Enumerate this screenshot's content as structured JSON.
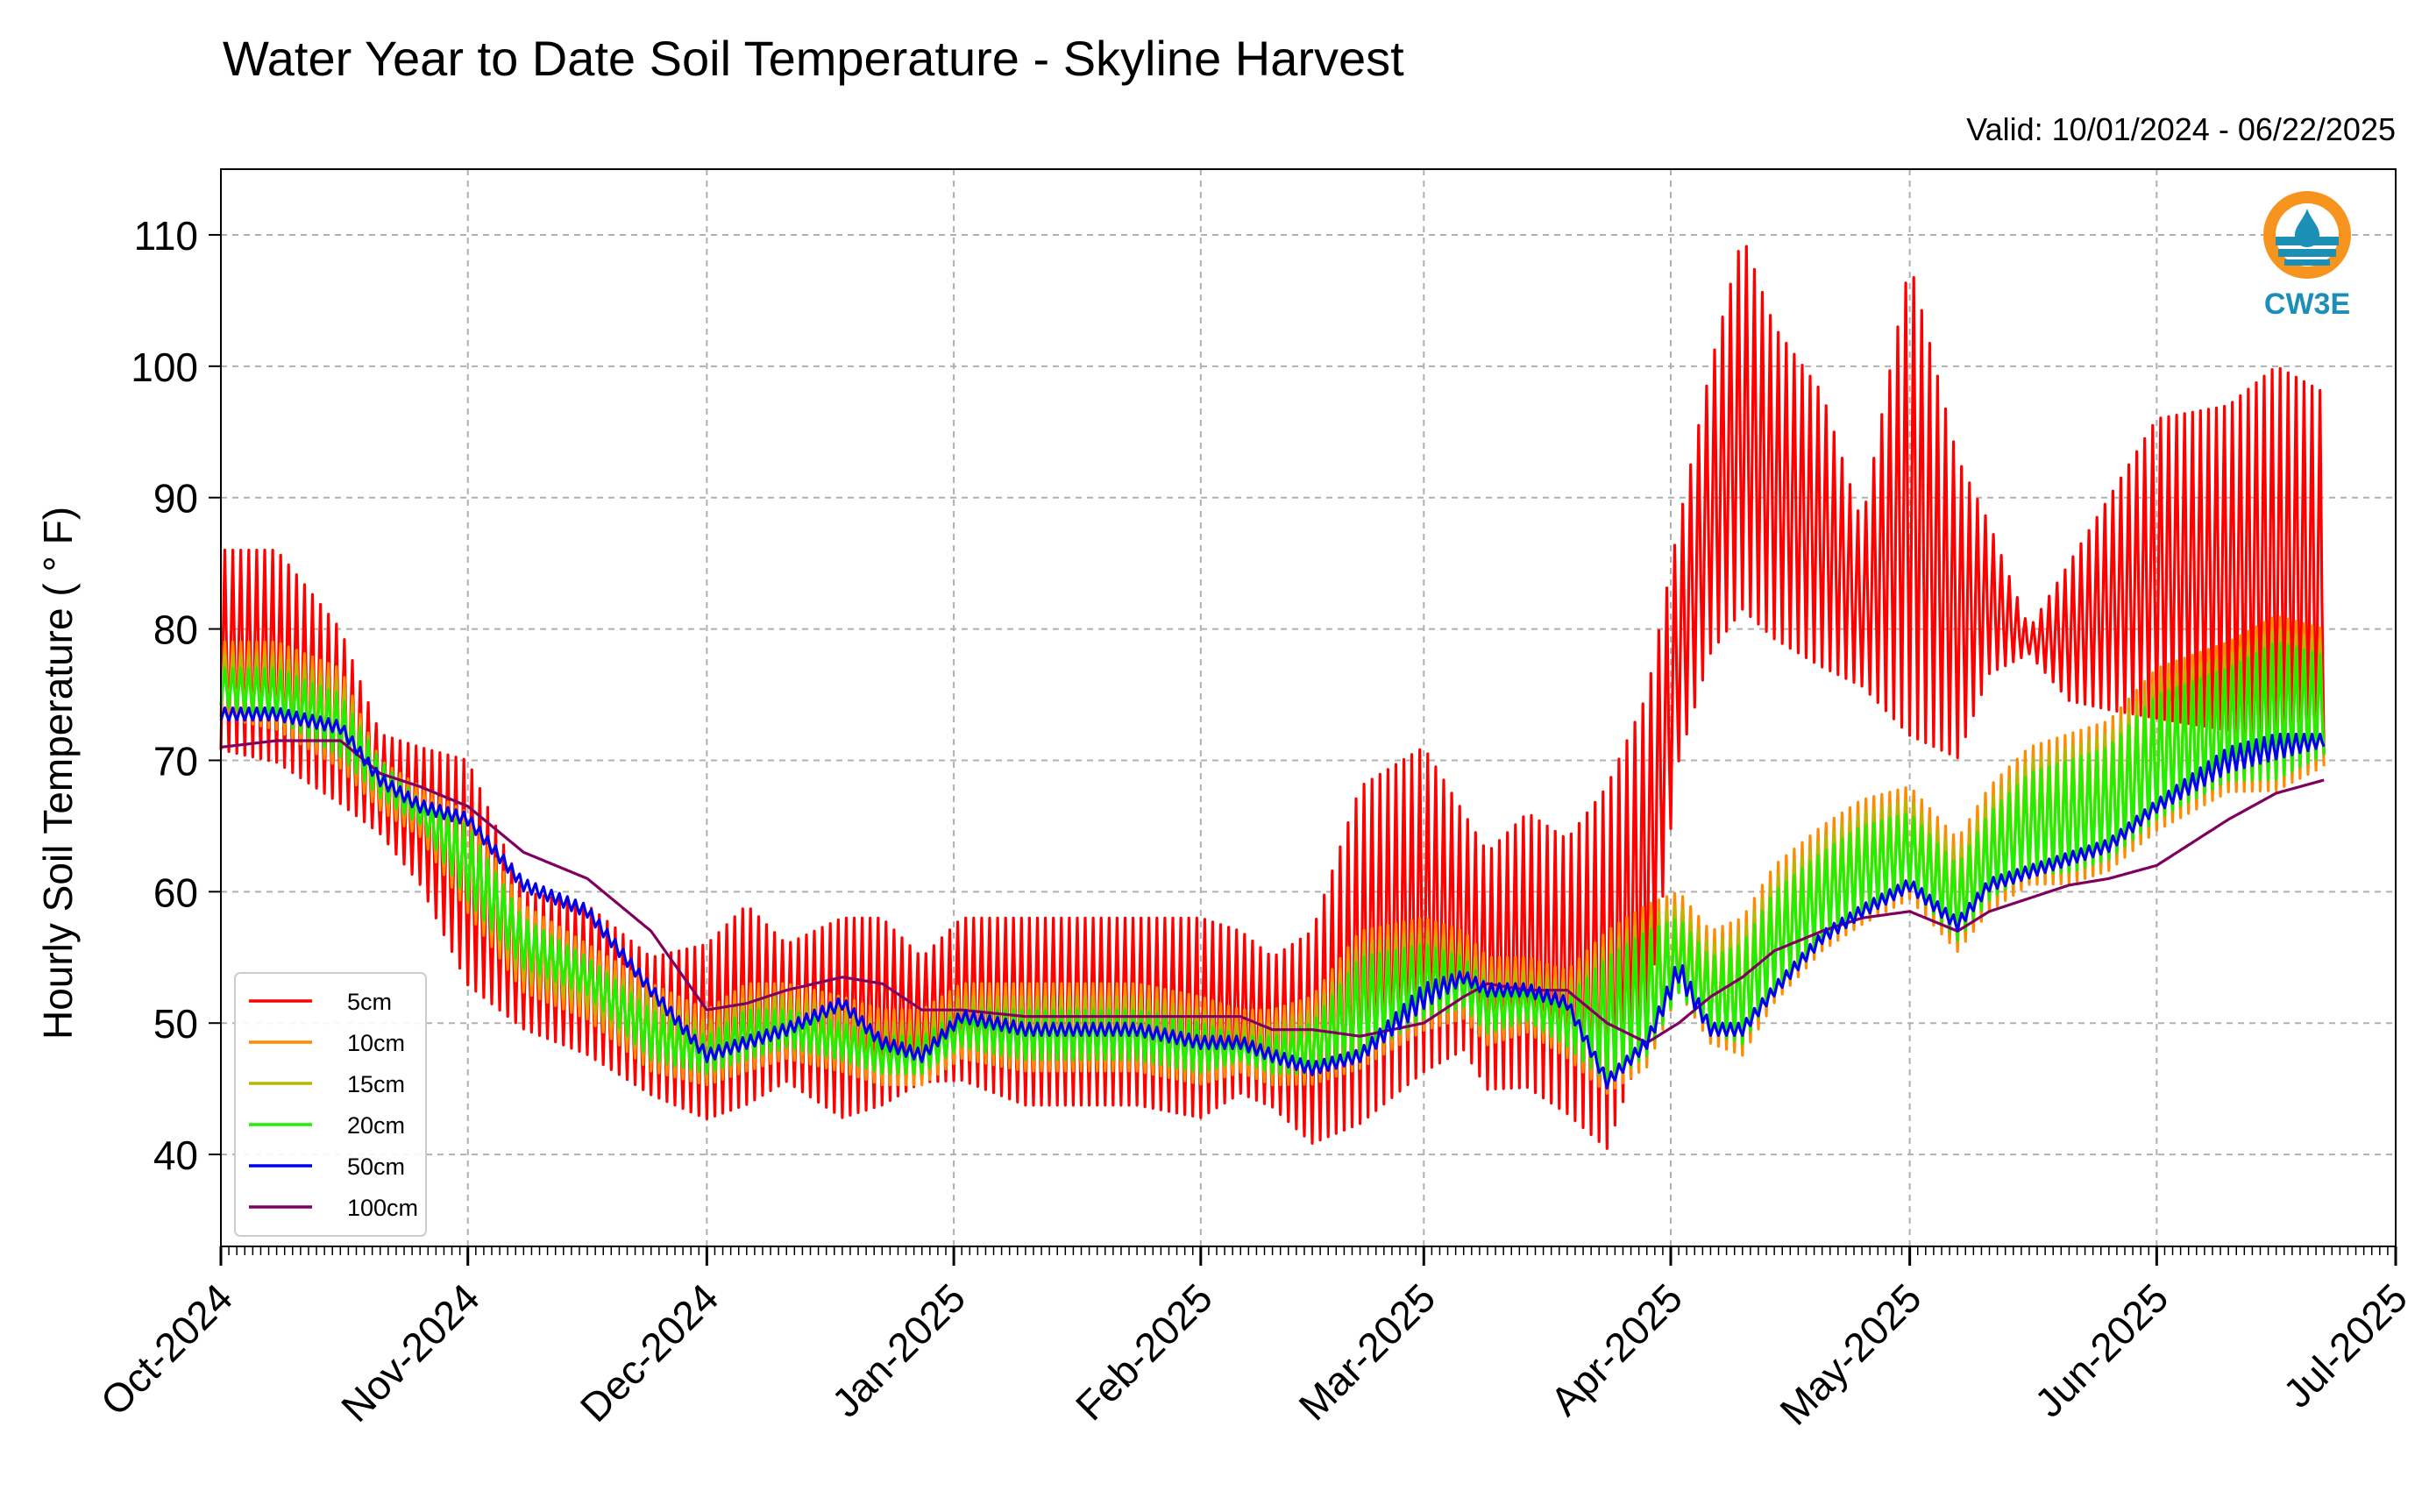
{
  "chart_data": {
    "type": "line",
    "title": "Water Year to Date Soil Temperature - Skyline Harvest",
    "subtitle": "Valid: 10/01/2024 - 06/22/2025",
    "ylabel": "Hourly Soil Temperature ( ° F)",
    "xlabel": "",
    "xlim": [
      "2024-10-01",
      "2025-07-01"
    ],
    "ylim": [
      33,
      115
    ],
    "yticks": [
      40,
      50,
      60,
      70,
      80,
      90,
      100,
      110
    ],
    "xticks": [
      {
        "date": "2024-10-01",
        "label": "Oct-2024"
      },
      {
        "date": "2024-11-01",
        "label": "Nov-2024"
      },
      {
        "date": "2024-12-01",
        "label": "Dec-2024"
      },
      {
        "date": "2025-01-01",
        "label": "Jan-2025"
      },
      {
        "date": "2025-02-01",
        "label": "Feb-2025"
      },
      {
        "date": "2025-03-01",
        "label": "Mar-2025"
      },
      {
        "date": "2025-04-01",
        "label": "Apr-2025"
      },
      {
        "date": "2025-05-01",
        "label": "May-2025"
      },
      {
        "date": "2025-06-01",
        "label": "Jun-2025"
      },
      {
        "date": "2025-07-01",
        "label": "Jul-2025"
      }
    ],
    "grid": true,
    "legend_position": "lower-left",
    "logo_text": "CW3E",
    "series": [
      {
        "name": "5cm",
        "color": "#ff0000",
        "x": [
          "2024-10-01",
          "2024-10-08",
          "2024-10-16",
          "2024-10-21",
          "2024-10-26",
          "2024-11-01",
          "2024-11-08",
          "2024-11-16",
          "2024-11-24",
          "2024-12-01",
          "2024-12-06",
          "2024-12-11",
          "2024-12-18",
          "2024-12-23",
          "2024-12-28",
          "2025-01-02",
          "2025-01-10",
          "2025-01-17",
          "2025-01-24",
          "2025-02-01",
          "2025-02-06",
          "2025-02-10",
          "2025-02-15",
          "2025-02-21",
          "2025-03-01",
          "2025-03-06",
          "2025-03-09",
          "2025-03-14",
          "2025-03-19",
          "2025-03-24",
          "2025-03-29",
          "2025-04-02",
          "2025-04-06",
          "2025-04-10",
          "2025-04-14",
          "2025-04-20",
          "2025-04-25",
          "2025-05-01",
          "2025-05-07",
          "2025-05-11",
          "2025-05-16",
          "2025-05-21",
          "2025-05-26",
          "2025-06-01",
          "2025-06-10",
          "2025-06-16",
          "2025-06-22"
        ],
        "lo": [
          70,
          69,
          66,
          64,
          60,
          52,
          49,
          47,
          44,
          42,
          43,
          45,
          42,
          43,
          45,
          45,
          43,
          43,
          43,
          42,
          44,
          43,
          40,
          41,
          45,
          47,
          44,
          44,
          42,
          39,
          48,
          69,
          77,
          80,
          78,
          76,
          75,
          70,
          69,
          76,
          78,
          74,
          73,
          72,
          71,
          69,
          69
        ],
        "hi": [
          86,
          86,
          80,
          72,
          71,
          70,
          60,
          59,
          55,
          56,
          59,
          56,
          58,
          58,
          55,
          58,
          58,
          58,
          58,
          58,
          57,
          55,
          57,
          68,
          71,
          66,
          63,
          66,
          64,
          68,
          75,
          88,
          100,
          110,
          103,
          98,
          88,
          108,
          93,
          88,
          80,
          85,
          90,
          96,
          97,
          100,
          98
        ]
      },
      {
        "name": "10cm",
        "color": "#ff8c00",
        "x": [
          "2024-10-01",
          "2024-10-08",
          "2024-10-16",
          "2024-10-21",
          "2024-10-26",
          "2024-11-01",
          "2024-11-08",
          "2024-11-16",
          "2024-11-24",
          "2024-12-01",
          "2024-12-06",
          "2024-12-11",
          "2024-12-18",
          "2024-12-23",
          "2024-12-28",
          "2025-01-02",
          "2025-01-10",
          "2025-01-17",
          "2025-01-24",
          "2025-02-01",
          "2025-02-06",
          "2025-02-10",
          "2025-02-15",
          "2025-02-21",
          "2025-03-01",
          "2025-03-06",
          "2025-03-09",
          "2025-03-14",
          "2025-03-19",
          "2025-03-24",
          "2025-03-29",
          "2025-04-02",
          "2025-04-06",
          "2025-04-10",
          "2025-04-14",
          "2025-04-20",
          "2025-04-25",
          "2025-05-01",
          "2025-05-07",
          "2025-05-11",
          "2025-05-16",
          "2025-05-21",
          "2025-05-26",
          "2025-06-01",
          "2025-06-10",
          "2025-06-16",
          "2025-06-22"
        ],
        "lo": [
          73,
          72,
          69,
          66,
          64,
          58,
          52,
          50,
          46,
          45,
          46,
          47,
          46,
          45,
          45,
          47,
          46,
          46,
          46,
          45,
          46,
          45,
          45,
          46,
          49,
          50,
          48,
          49,
          47,
          44,
          46,
          52,
          48,
          47,
          51,
          55,
          57,
          59,
          55,
          58,
          60,
          60,
          61,
          64,
          67,
          67,
          69
        ],
        "hi": [
          79,
          79,
          77,
          70,
          68,
          66,
          59,
          56,
          53,
          51,
          53,
          53,
          52,
          51,
          51,
          53,
          53,
          53,
          53,
          52,
          51,
          51,
          52,
          57,
          58,
          57,
          55,
          55,
          54,
          57,
          59,
          60,
          57,
          58,
          62,
          65,
          67,
          68,
          64,
          68,
          71,
          72,
          73,
          77,
          79,
          81,
          80
        ]
      },
      {
        "name": "15cm",
        "color": "#b8b800",
        "x": [
          "2024-10-01",
          "2024-10-08",
          "2024-10-16",
          "2024-10-21",
          "2024-10-26",
          "2024-11-01",
          "2024-11-08",
          "2024-11-16",
          "2024-11-24",
          "2024-12-01",
          "2024-12-06",
          "2024-12-11",
          "2024-12-18",
          "2024-12-23",
          "2024-12-28",
          "2025-01-02",
          "2025-01-10",
          "2025-01-17",
          "2025-01-24",
          "2025-02-01",
          "2025-02-06",
          "2025-02-10",
          "2025-02-15",
          "2025-02-21",
          "2025-03-01",
          "2025-03-06",
          "2025-03-09",
          "2025-03-14",
          "2025-03-19",
          "2025-03-24",
          "2025-03-29",
          "2025-04-02",
          "2025-04-06",
          "2025-04-10",
          "2025-04-14",
          "2025-04-20",
          "2025-04-25",
          "2025-05-01",
          "2025-05-07",
          "2025-05-11",
          "2025-05-16",
          "2025-05-21",
          "2025-05-26",
          "2025-06-01",
          "2025-06-10",
          "2025-06-16",
          "2025-06-22"
        ],
        "lo": [
          74,
          73,
          70,
          67,
          65,
          59,
          53,
          51,
          47,
          46,
          47,
          48,
          47,
          46,
          46,
          48,
          47,
          47,
          47,
          46,
          47,
          46,
          46,
          47,
          50,
          51,
          49,
          50,
          48,
          45,
          47,
          52,
          49,
          48,
          52,
          56,
          58,
          60,
          56,
          59,
          61,
          61,
          62,
          65,
          68,
          68,
          70
        ],
        "hi": [
          78,
          78,
          76,
          70,
          67,
          65,
          58,
          55,
          52,
          50,
          52,
          52,
          51,
          50,
          50,
          52,
          52,
          52,
          52,
          51,
          50,
          50,
          51,
          56,
          57,
          56,
          54,
          54,
          53,
          56,
          58,
          59,
          56,
          57,
          61,
          64,
          66,
          67,
          63,
          67,
          70,
          71,
          72,
          76,
          78,
          80,
          79
        ]
      },
      {
        "name": "20cm",
        "color": "#22ee00",
        "x": [
          "2024-10-01",
          "2024-10-08",
          "2024-10-16",
          "2024-10-21",
          "2024-10-26",
          "2024-11-01",
          "2024-11-08",
          "2024-11-16",
          "2024-11-24",
          "2024-12-01",
          "2024-12-06",
          "2024-12-11",
          "2024-12-18",
          "2024-12-23",
          "2024-12-28",
          "2025-01-02",
          "2025-01-10",
          "2025-01-17",
          "2025-01-24",
          "2025-02-01",
          "2025-02-06",
          "2025-02-10",
          "2025-02-15",
          "2025-02-21",
          "2025-03-01",
          "2025-03-06",
          "2025-03-09",
          "2025-03-14",
          "2025-03-19",
          "2025-03-24",
          "2025-03-29",
          "2025-04-02",
          "2025-04-06",
          "2025-04-10",
          "2025-04-14",
          "2025-04-20",
          "2025-04-25",
          "2025-05-01",
          "2025-05-07",
          "2025-05-11",
          "2025-05-16",
          "2025-05-21",
          "2025-05-26",
          "2025-06-01",
          "2025-06-10",
          "2025-06-16",
          "2025-06-22"
        ],
        "lo": [
          74,
          73,
          70,
          67,
          65,
          59,
          54,
          52,
          47,
          46,
          47,
          48,
          47,
          46,
          46,
          48,
          47,
          47,
          47,
          46,
          47,
          46,
          46,
          47,
          50,
          51,
          49,
          50,
          48,
          45,
          47,
          52,
          49,
          48,
          52,
          56,
          58,
          60,
          56,
          59,
          61,
          61,
          62,
          65,
          68,
          68,
          70
        ],
        "hi": [
          77,
          77,
          75,
          70,
          67,
          65,
          58,
          55,
          51,
          49,
          51,
          51,
          50,
          49,
          49,
          51,
          51,
          51,
          51,
          50,
          49,
          49,
          50,
          55,
          56,
          55,
          53,
          53,
          52,
          55,
          57,
          58,
          55,
          56,
          60,
          63,
          65,
          66,
          62,
          66,
          69,
          70,
          71,
          75,
          77,
          79,
          78
        ]
      },
      {
        "name": "50cm",
        "color": "#0000ee",
        "x": [
          "2024-10-01",
          "2024-10-08",
          "2024-10-16",
          "2024-10-21",
          "2024-10-26",
          "2024-11-01",
          "2024-11-08",
          "2024-11-16",
          "2024-11-24",
          "2024-12-01",
          "2024-12-06",
          "2024-12-11",
          "2024-12-18",
          "2024-12-23",
          "2024-12-28",
          "2025-01-02",
          "2025-01-10",
          "2025-01-17",
          "2025-01-24",
          "2025-02-01",
          "2025-02-06",
          "2025-02-10",
          "2025-02-15",
          "2025-02-21",
          "2025-03-01",
          "2025-03-06",
          "2025-03-09",
          "2025-03-14",
          "2025-03-19",
          "2025-03-24",
          "2025-03-29",
          "2025-04-02",
          "2025-04-06",
          "2025-04-10",
          "2025-04-14",
          "2025-04-20",
          "2025-04-25",
          "2025-05-01",
          "2025-05-07",
          "2025-05-11",
          "2025-05-16",
          "2025-05-21",
          "2025-05-26",
          "2025-06-01",
          "2025-06-10",
          "2025-06-16",
          "2025-06-22"
        ],
        "lo": [
          73,
          73,
          72,
          68,
          66,
          65,
          60,
          58,
          52,
          47,
          48,
          49,
          51,
          48,
          47,
          50,
          49,
          49,
          49,
          48,
          48,
          47,
          46,
          47,
          51,
          53,
          52,
          52,
          51,
          45,
          48,
          53,
          49,
          49,
          52,
          56,
          58,
          60,
          57,
          60,
          61,
          62,
          63,
          66,
          69,
          70,
          71
        ],
        "hi": [
          74,
          74,
          73,
          69,
          67,
          66,
          61,
          59,
          53,
          48,
          49,
          50,
          52,
          49,
          48,
          51,
          50,
          50,
          50,
          49,
          49,
          48,
          47,
          48,
          53,
          54,
          53,
          53,
          52,
          46,
          49,
          55,
          50,
          50,
          53,
          57,
          59,
          61,
          58,
          61,
          62,
          63,
          64,
          67,
          71,
          72,
          72
        ]
      },
      {
        "name": "100cm",
        "color": "#800060",
        "x": [
          "2024-10-01",
          "2024-10-08",
          "2024-10-16",
          "2024-10-21",
          "2024-10-26",
          "2024-11-01",
          "2024-11-08",
          "2024-11-16",
          "2024-11-24",
          "2024-12-01",
          "2024-12-06",
          "2024-12-11",
          "2024-12-18",
          "2024-12-23",
          "2024-12-28",
          "2025-01-02",
          "2025-01-10",
          "2025-01-17",
          "2025-01-24",
          "2025-02-01",
          "2025-02-06",
          "2025-02-10",
          "2025-02-15",
          "2025-02-21",
          "2025-03-01",
          "2025-03-06",
          "2025-03-09",
          "2025-03-14",
          "2025-03-19",
          "2025-03-24",
          "2025-03-29",
          "2025-04-02",
          "2025-04-06",
          "2025-04-10",
          "2025-04-14",
          "2025-04-20",
          "2025-04-25",
          "2025-05-01",
          "2025-05-07",
          "2025-05-11",
          "2025-05-16",
          "2025-05-21",
          "2025-05-26",
          "2025-06-01",
          "2025-06-10",
          "2025-06-16",
          "2025-06-22"
        ],
        "lo": [
          71,
          71.5,
          71.5,
          69,
          68,
          66.5,
          63,
          61,
          57,
          51,
          51.5,
          52.5,
          53.5,
          53,
          51,
          51,
          50.5,
          50.5,
          50.5,
          50.5,
          50.5,
          49.5,
          49.5,
          49,
          50,
          52,
          53,
          52.5,
          52.5,
          50,
          48.5,
          50,
          52,
          53.5,
          55.5,
          57,
          58,
          58.5,
          57,
          58.5,
          59.5,
          60.5,
          61,
          62,
          65.5,
          67.5,
          68.5
        ],
        "hi": [
          71,
          71.5,
          71.5,
          69,
          68,
          66.5,
          63,
          61,
          57,
          51,
          51.5,
          52.5,
          53.5,
          53,
          51,
          51,
          50.5,
          50.5,
          50.5,
          50.5,
          50.5,
          49.5,
          49.5,
          49,
          50,
          52,
          53,
          52.5,
          52.5,
          50,
          48.5,
          50,
          52,
          53.5,
          55.5,
          57,
          58,
          58.5,
          57,
          58.5,
          59.5,
          60.5,
          61,
          62,
          65.5,
          67.5,
          68.5
        ]
      }
    ]
  }
}
